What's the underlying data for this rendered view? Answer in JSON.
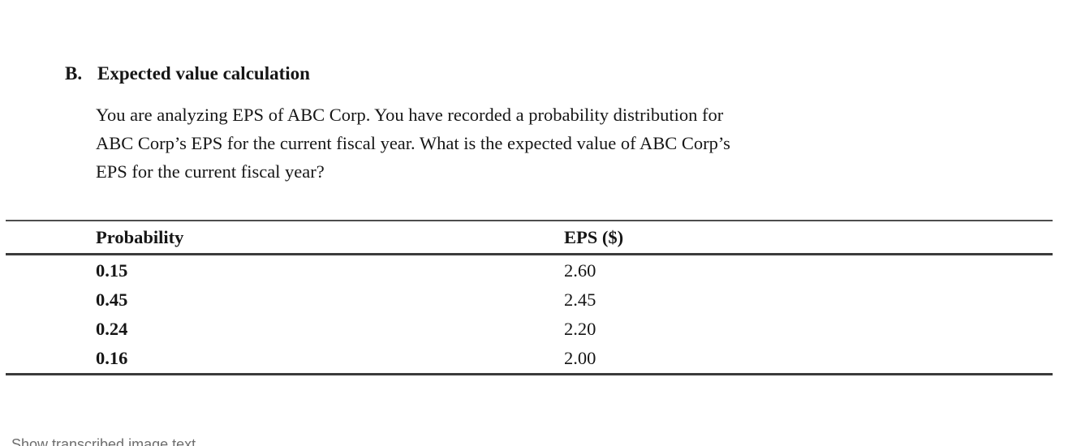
{
  "document": {
    "section_label": "B.",
    "section_title": "Expected value calculation",
    "paragraph_lines": [
      "You are analyzing EPS of ABC Corp. You have recorded a probability distribution for",
      "ABC Corp’s EPS for the current fiscal year. What is the expected value of ABC Corp’s",
      "EPS for the current fiscal year?"
    ],
    "table": {
      "headers": [
        "Probability",
        "EPS ($)"
      ],
      "rows": [
        [
          "0.15",
          "2.60"
        ],
        [
          "0.45",
          "2.45"
        ],
        [
          "0.24",
          "2.20"
        ],
        [
          "0.16",
          "2.00"
        ]
      ]
    }
  },
  "footer": {
    "show_transcribed_label": "Show transcribed image text"
  },
  "colors": {
    "text": "#161616",
    "table_rule": "#3b3b3b",
    "muted_text": "#6e6e6e",
    "background": "#ffffff"
  }
}
